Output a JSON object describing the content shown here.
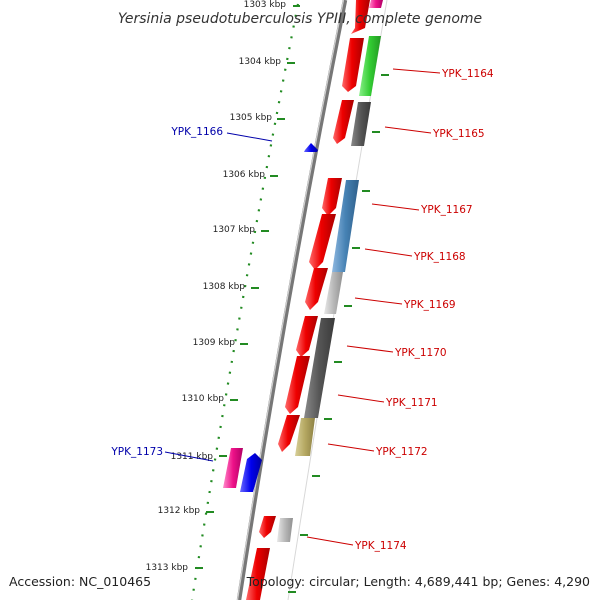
{
  "title": "Yersinia pseudotuberculosis YPIII, complete genome",
  "footer": {
    "accession": "Accession: NC_010465",
    "topology": "Topology: circular; Length: 4,689,441 bp; Genes: 4,290"
  },
  "colors": {
    "forward_label": "#cc0000",
    "reverse_label": "#0000aa",
    "backbone": "#888888",
    "scale_dots": "#228B22",
    "gene_red": "#ee0000",
    "gene_blue": "#0000ee"
  },
  "scale_ticks": [
    "1303 kbp",
    "1304 kbp",
    "1305 kbp",
    "1306 kbp",
    "1307 kbp",
    "1308 kbp",
    "1309 kbp",
    "1310 kbp",
    "1311 kbp",
    "1312 kbp",
    "1313 kbp"
  ],
  "gene_labels": [
    {
      "name": "YPK_1164",
      "strand": "forward"
    },
    {
      "name": "YPK_1165",
      "strand": "forward"
    },
    {
      "name": "YPK_1166",
      "strand": "reverse"
    },
    {
      "name": "YPK_1167",
      "strand": "forward"
    },
    {
      "name": "YPK_1168",
      "strand": "forward"
    },
    {
      "name": "YPK_1169",
      "strand": "forward"
    },
    {
      "name": "YPK_1170",
      "strand": "forward"
    },
    {
      "name": "YPK_1171",
      "strand": "forward"
    },
    {
      "name": "YPK_1172",
      "strand": "forward"
    },
    {
      "name": "YPK_1173",
      "strand": "reverse"
    },
    {
      "name": "YPK_1174",
      "strand": "forward"
    }
  ]
}
